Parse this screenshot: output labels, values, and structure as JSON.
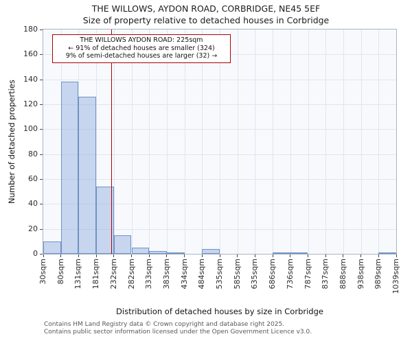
{
  "chart_data": {
    "type": "bar",
    "title": "THE WILLOWS, AYDON ROAD, CORBRIDGE, NE45 5EF",
    "subtitle": "Size of property relative to detached houses in Corbridge",
    "xlabel": "Distribution of detached houses by size in Corbridge",
    "ylabel": "Number of detached properties",
    "ylim": [
      0,
      180
    ],
    "ytick_step": 20,
    "grid": true,
    "legend": "none",
    "bin_edges_sqm": [
      30,
      80,
      131,
      181,
      232,
      282,
      333,
      383,
      434,
      484,
      535,
      585,
      635,
      686,
      736,
      787,
      837,
      888,
      938,
      989,
      1039
    ],
    "tick_labels": [
      "30sqm",
      "80sqm",
      "131sqm",
      "181sqm",
      "232sqm",
      "282sqm",
      "333sqm",
      "383sqm",
      "434sqm",
      "484sqm",
      "535sqm",
      "585sqm",
      "635sqm",
      "686sqm",
      "736sqm",
      "787sqm",
      "837sqm",
      "888sqm",
      "938sqm",
      "989sqm",
      "1039sqm"
    ],
    "values": [
      10,
      138,
      126,
      54,
      15,
      5,
      2,
      1,
      0,
      4,
      0,
      0,
      0,
      1,
      1,
      0,
      0,
      0,
      0,
      1
    ],
    "bar_fill": "rgba(142,169,219,0.45)",
    "bar_edge": "#6d93c4",
    "grid_color": "#dfe5f0",
    "plot_bg": "#f7f9fd",
    "marker": {
      "value_sqm": 225,
      "line_color": "#aa0000",
      "box_title": "THE WILLOWS AYDON ROAD: 225sqm",
      "smaller_text": "← 91% of detached houses are smaller (324)",
      "larger_text": "9% of semi-detached houses are larger (32) →"
    }
  },
  "footer": {
    "line1": "Contains HM Land Registry data © Crown copyright and database right 2025.",
    "line2": "Contains public sector information licensed under the Open Government Licence v3.0."
  }
}
